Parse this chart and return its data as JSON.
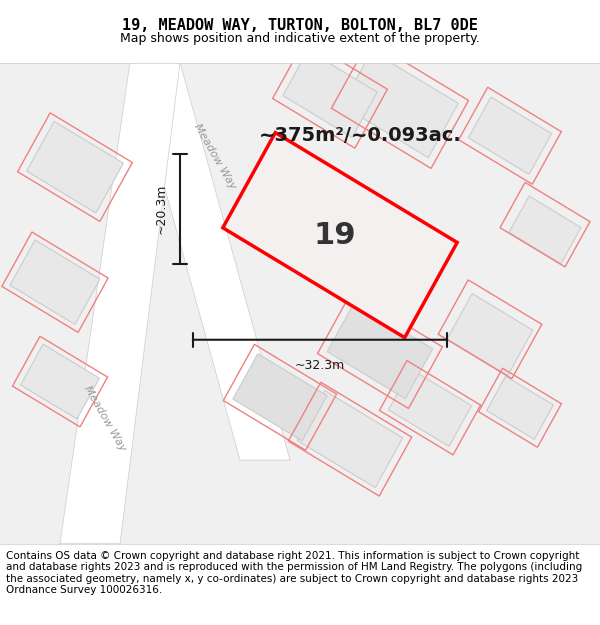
{
  "title": "19, MEADOW WAY, TURTON, BOLTON, BL7 0DE",
  "subtitle": "Map shows position and indicative extent of the property.",
  "footer": "Contains OS data © Crown copyright and database right 2021. This information is subject to Crown copyright and database rights 2023 and is reproduced with the permission of HM Land Registry. The polygons (including the associated geometry, namely x, y co-ordinates) are subject to Crown copyright and database rights 2023 Ordnance Survey 100026316.",
  "bg_color": "#f5f5f5",
  "map_bg": "#f0f0f0",
  "plot_fill": "#e8e8e8",
  "road_color": "#ffffff",
  "highlight_color": "#ff0000",
  "building_color": "#e0e0e0",
  "dim_line_color": "#1a1a1a",
  "area_text": "~375m²/~0.093ac.",
  "number_text": "19",
  "dim_width": "~32.3m",
  "dim_height": "~20.3m",
  "road_label_1": "Meadow Way",
  "road_label_2": "Meadow Way",
  "title_fontsize": 11,
  "subtitle_fontsize": 9,
  "footer_fontsize": 7.5
}
